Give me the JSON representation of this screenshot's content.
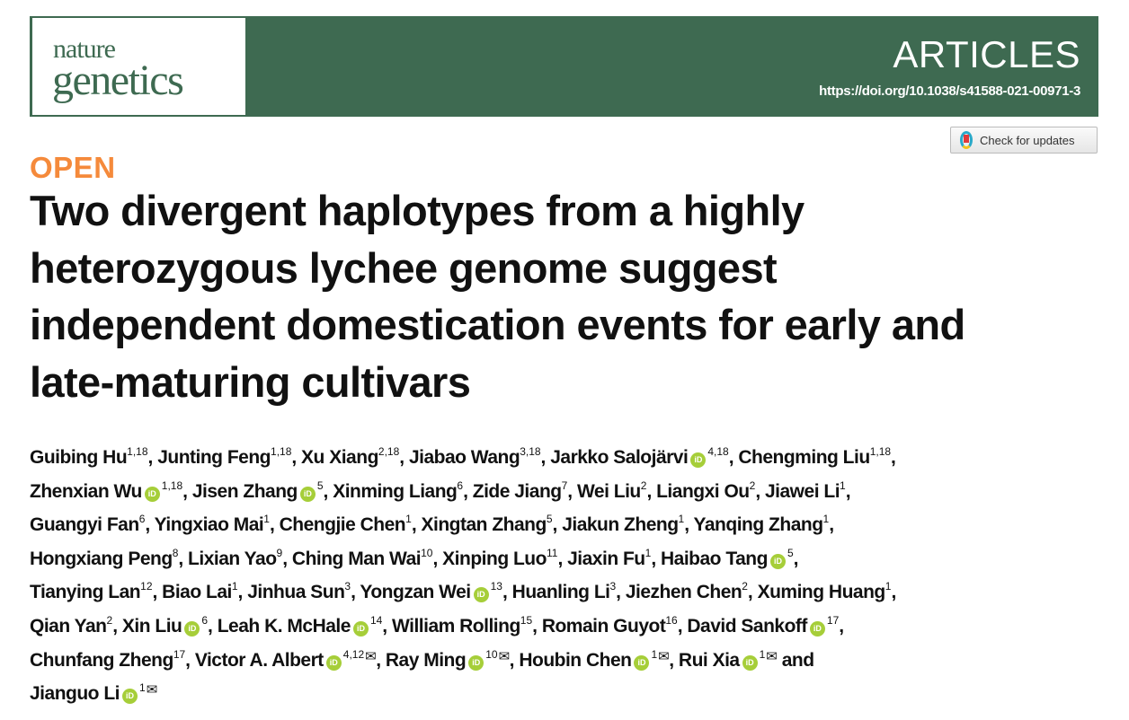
{
  "journal": {
    "logo_line1": "nature",
    "logo_line2": "genetics",
    "section": "ARTICLES",
    "doi": "https://doi.org/10.1038/s41588-021-00971-3",
    "brand_color": "#3e6a51"
  },
  "check_updates": {
    "label": "Check for updates"
  },
  "access": {
    "label": "OPEN",
    "color": "#f58a3b"
  },
  "title_lines": [
    "Two divergent haplotypes from a highly",
    "heterozygous lychee genome suggest",
    "independent domestication events for early and",
    "late-maturing cultivars"
  ],
  "authors": [
    [
      {
        "name": "Guibing Hu",
        "aff": "1,18",
        "sep": ", "
      },
      {
        "name": "Junting Feng",
        "aff": "1,18",
        "sep": ", "
      },
      {
        "name": "Xu Xiang",
        "aff": "2,18",
        "sep": ", "
      },
      {
        "name": "Jiabao Wang",
        "aff": "3,18",
        "sep": ", "
      },
      {
        "name": "Jarkko Salojärvi",
        "aff": "4,18",
        "orcid": true,
        "sep": ", "
      },
      {
        "name": "Chengming Liu",
        "aff": "1,18",
        "sep": ","
      }
    ],
    [
      {
        "name": "Zhenxian Wu",
        "aff": "1,18",
        "orcid": true,
        "sep": ", "
      },
      {
        "name": "Jisen Zhang",
        "aff": "5",
        "orcid": true,
        "sep": ", "
      },
      {
        "name": "Xinming Liang",
        "aff": "6",
        "sep": ", "
      },
      {
        "name": "Zide Jiang",
        "aff": "7",
        "sep": ", "
      },
      {
        "name": "Wei Liu",
        "aff": "2",
        "sep": ", "
      },
      {
        "name": "Liangxi Ou",
        "aff": "2",
        "sep": ", "
      },
      {
        "name": "Jiawei Li",
        "aff": "1",
        "sep": ","
      }
    ],
    [
      {
        "name": "Guangyi Fan",
        "aff": "6",
        "sep": ", "
      },
      {
        "name": "Yingxiao Mai",
        "aff": "1",
        "sep": ", "
      },
      {
        "name": "Chengjie Chen",
        "aff": "1",
        "sep": ", "
      },
      {
        "name": "Xingtan Zhang",
        "aff": "5",
        "sep": ", "
      },
      {
        "name": "Jiakun Zheng",
        "aff": "1",
        "sep": ", "
      },
      {
        "name": "Yanqing Zhang",
        "aff": "1",
        "sep": ","
      }
    ],
    [
      {
        "name": "Hongxiang Peng",
        "aff": "8",
        "sep": ", "
      },
      {
        "name": "Lixian Yao",
        "aff": "9",
        "sep": ", "
      },
      {
        "name": "Ching Man Wai",
        "aff": "10",
        "sep": ", "
      },
      {
        "name": "Xinping Luo",
        "aff": "11",
        "sep": ", "
      },
      {
        "name": "Jiaxin Fu",
        "aff": "1",
        "sep": ", "
      },
      {
        "name": "Haibao Tang",
        "aff": "5",
        "orcid": true,
        "sep": ","
      }
    ],
    [
      {
        "name": "Tianying Lan",
        "aff": "12",
        "sep": ", "
      },
      {
        "name": "Biao Lai",
        "aff": "1",
        "sep": ", "
      },
      {
        "name": "Jinhua Sun",
        "aff": "3",
        "sep": ", "
      },
      {
        "name": "Yongzan Wei",
        "aff": "13",
        "orcid": true,
        "sep": ", "
      },
      {
        "name": "Huanling Li",
        "aff": "3",
        "sep": ", "
      },
      {
        "name": "Jiezhen Chen",
        "aff": "2",
        "sep": ", "
      },
      {
        "name": "Xuming Huang",
        "aff": "1",
        "sep": ","
      }
    ],
    [
      {
        "name": "Qian Yan",
        "aff": "2",
        "sep": ", "
      },
      {
        "name": "Xin Liu",
        "aff": "6",
        "orcid": true,
        "sep": ", "
      },
      {
        "name": "Leah K. McHale",
        "aff": "14",
        "orcid": true,
        "sep": ", "
      },
      {
        "name": "William Rolling",
        "aff": "15",
        "sep": ", "
      },
      {
        "name": "Romain Guyot",
        "aff": "16",
        "sep": ", "
      },
      {
        "name": "David Sankoff",
        "aff": "17",
        "orcid": true,
        "sep": ","
      }
    ],
    [
      {
        "name": "Chunfang Zheng",
        "aff": "17",
        "sep": ", "
      },
      {
        "name": "Victor A. Albert",
        "aff": "4,12",
        "orcid": true,
        "email": true,
        "sep": ", "
      },
      {
        "name": "Ray Ming",
        "aff": "10",
        "orcid": true,
        "email": true,
        "sep": ", "
      },
      {
        "name": "Houbin Chen",
        "aff": "1",
        "orcid": true,
        "email": true,
        "sep": ", "
      },
      {
        "name": "Rui Xia",
        "aff": "1",
        "orcid": true,
        "email": true,
        "sep": " and"
      }
    ],
    [
      {
        "name": "Jianguo Li",
        "aff": "1",
        "orcid": true,
        "email": true,
        "sep": ""
      }
    ]
  ],
  "icons": {
    "orcid": "iD",
    "email": "✉"
  },
  "orcid_color": "#a6ce39"
}
